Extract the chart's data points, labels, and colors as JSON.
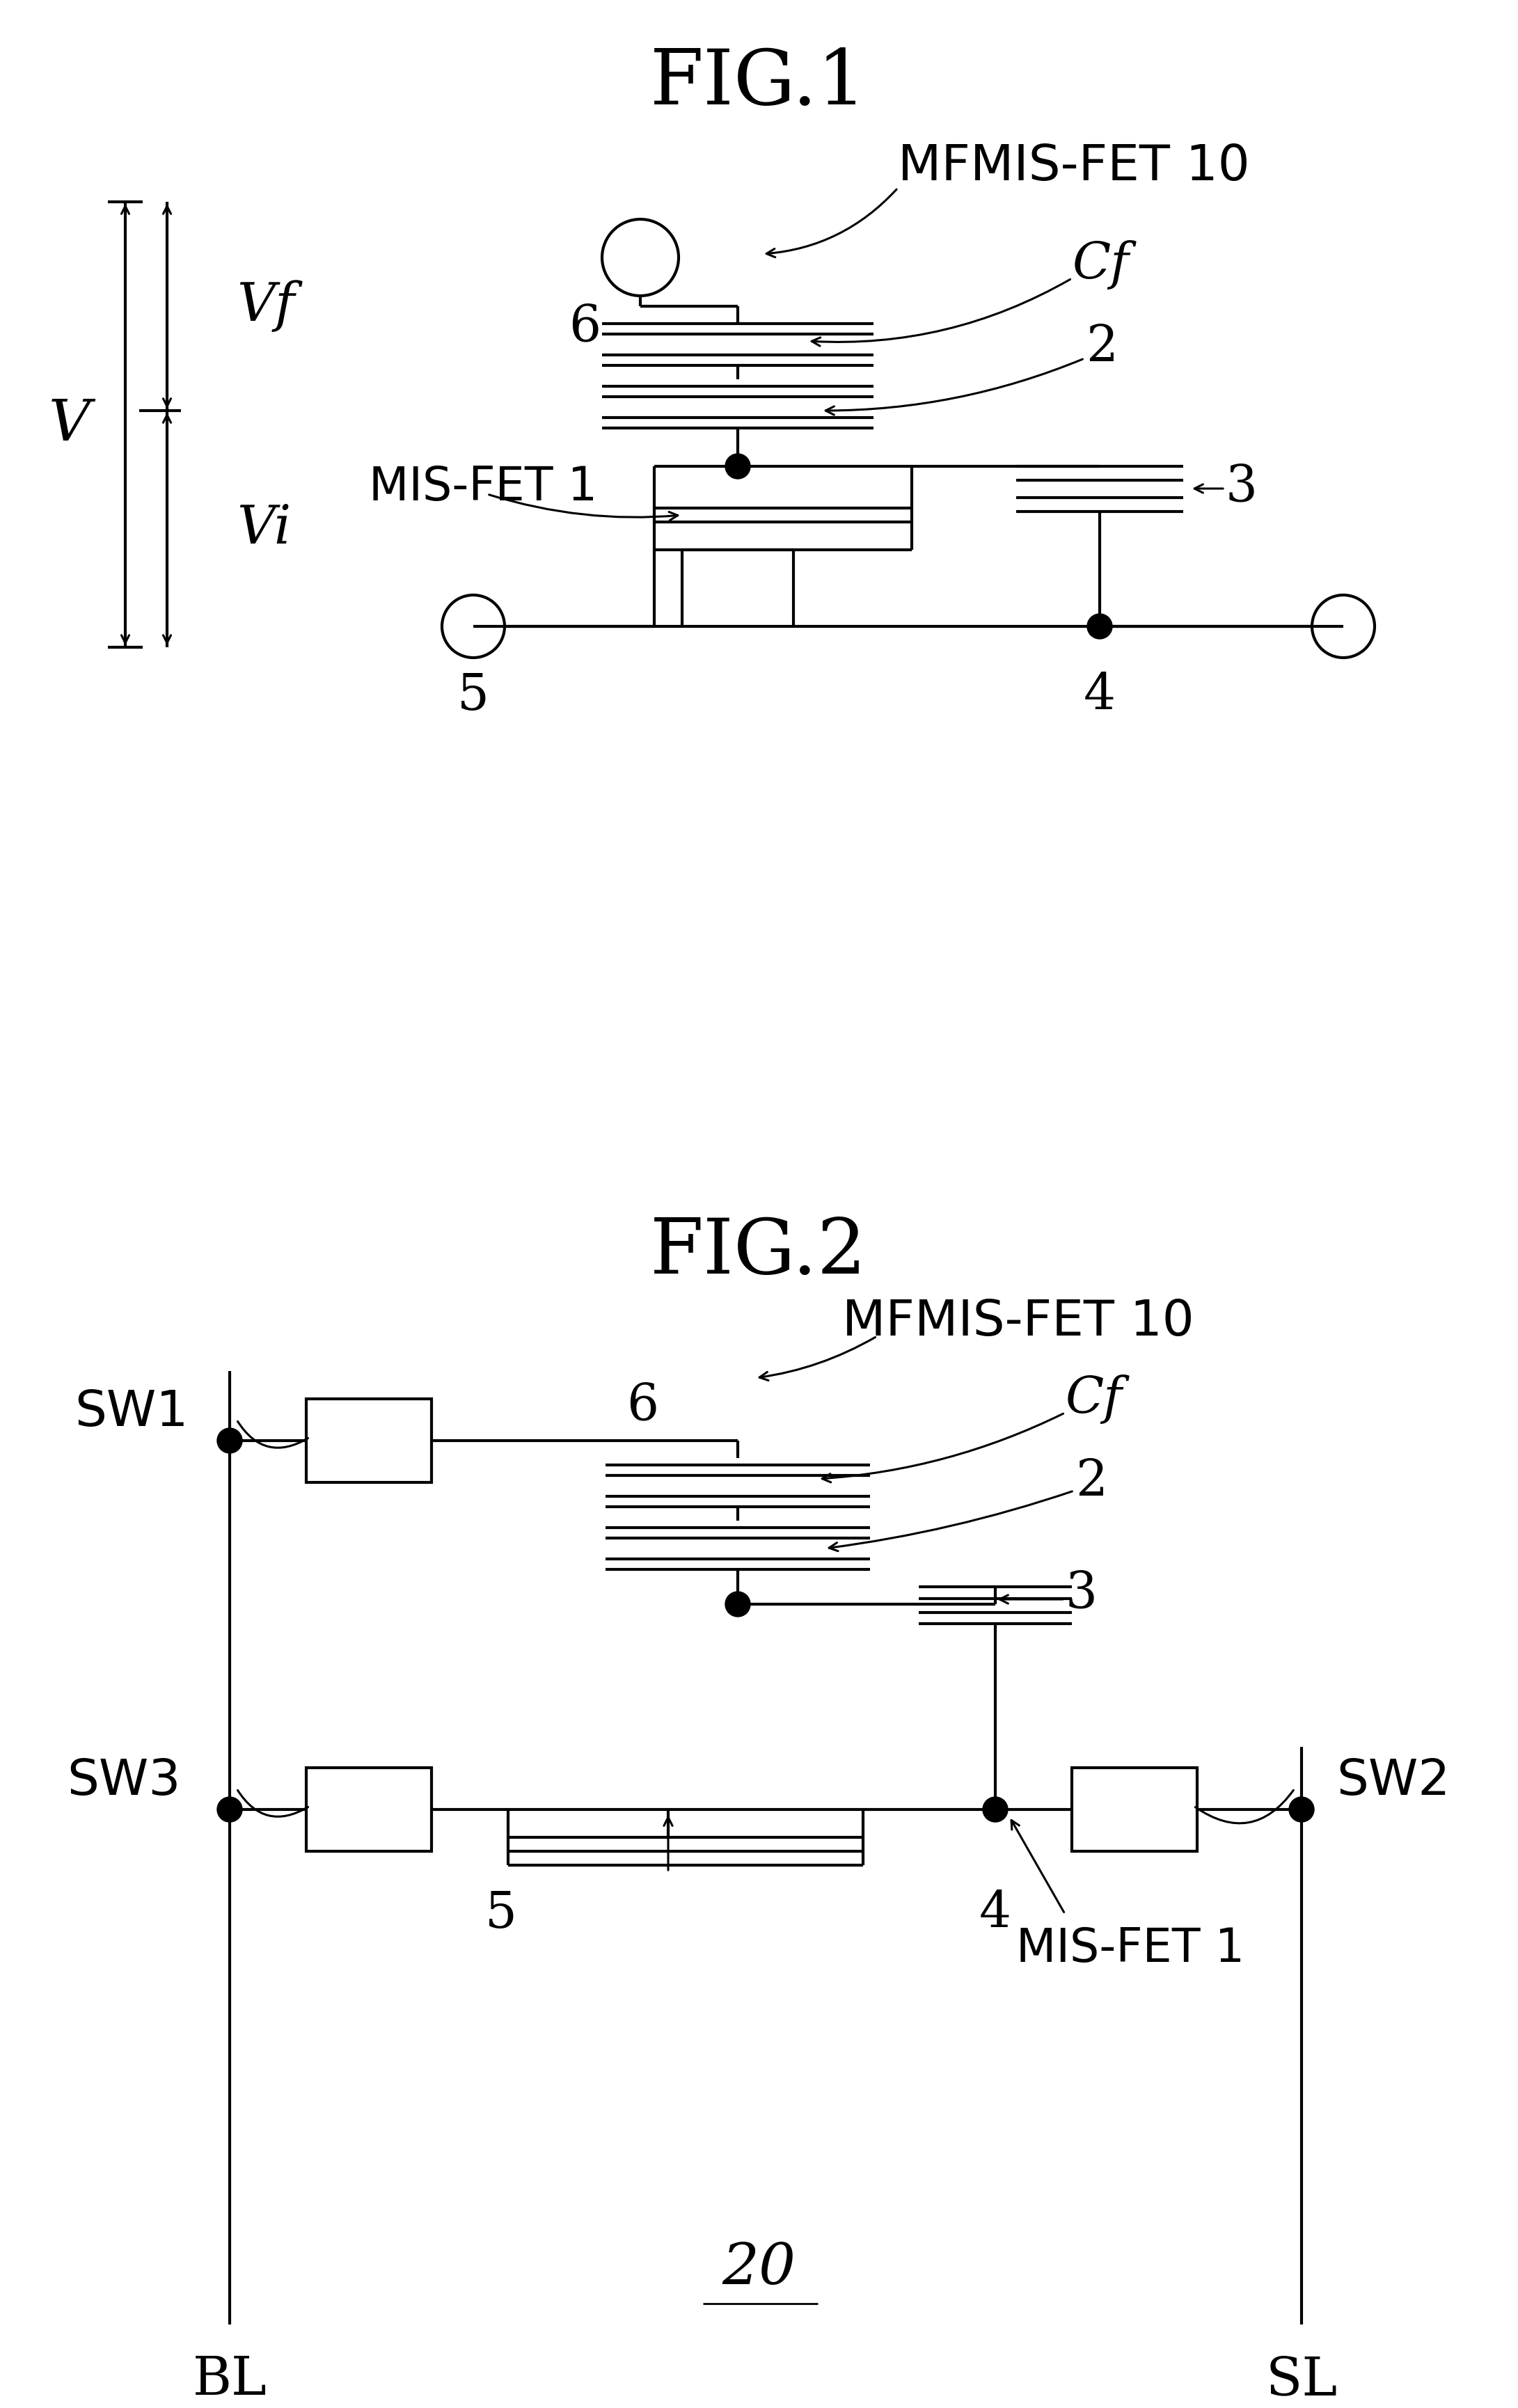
{
  "bg_color": "#ffffff",
  "line_color": "#000000",
  "fig1_title": "FIG.1",
  "fig2_title": "FIG.2",
  "page_label": "20"
}
